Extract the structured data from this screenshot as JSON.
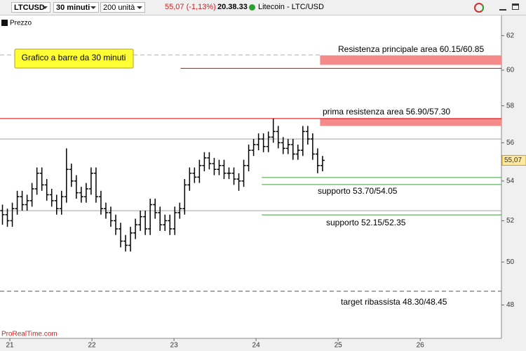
{
  "toolbar": {
    "symbol": "LTCUSD",
    "timeframe": "30 minuti",
    "units": "200 unità",
    "price_change": "55,07 (-1,13%)",
    "time": "20.38.33",
    "instrument": "Litecoin - LTC/USD"
  },
  "chart_data": {
    "type": "ohlc",
    "legend": "Prezzo",
    "note": "Grafico a barre da 30 minuti",
    "watermark": "ProRealTime.com",
    "color": "#000000",
    "log_scale": true,
    "xlim": [
      20.88,
      26.99
    ],
    "xticks": [
      21,
      22,
      23,
      24,
      25,
      26
    ],
    "ylim": [
      46.5,
      63.2
    ],
    "yticks": [
      48,
      50,
      52,
      54,
      56,
      58,
      60,
      62
    ],
    "last_price": {
      "value": 55.07,
      "label": "55,07"
    },
    "x": [
      20.91,
      20.97,
      21.03,
      21.09,
      21.15,
      21.21,
      21.27,
      21.33,
      21.39,
      21.45,
      21.51,
      21.57,
      21.63,
      21.69,
      21.75,
      21.81,
      21.87,
      21.93,
      21.99,
      22.05,
      22.11,
      22.17,
      22.23,
      22.29,
      22.35,
      22.41,
      22.47,
      22.53,
      22.59,
      22.65,
      22.71,
      22.77,
      22.83,
      22.89,
      22.95,
      23.01,
      23.07,
      23.13,
      23.19,
      23.25,
      23.31,
      23.37,
      23.43,
      23.49,
      23.55,
      23.61,
      23.67,
      23.73,
      23.79,
      23.85,
      23.91,
      23.97,
      24.03,
      24.09,
      24.15,
      24.21,
      24.27,
      24.33,
      24.39,
      24.45,
      24.51,
      24.57,
      24.63,
      24.69,
      24.75,
      24.81
    ],
    "open": [
      52.5,
      52.3,
      52.0,
      52.6,
      53.2,
      52.8,
      53.0,
      53.6,
      54.4,
      53.8,
      53.3,
      53.0,
      52.6,
      53.2,
      54.6,
      54.0,
      53.4,
      53.2,
      53.6,
      54.4,
      53.2,
      52.6,
      52.4,
      52.0,
      51.6,
      51.0,
      50.8,
      51.4,
      51.8,
      52.2,
      51.6,
      52.8,
      52.4,
      51.8,
      52.0,
      51.6,
      52.4,
      52.6,
      53.8,
      54.4,
      54.2,
      54.8,
      55.2,
      54.9,
      54.6,
      54.8,
      54.4,
      54.4,
      54.1,
      54.0,
      54.8,
      55.6,
      55.9,
      56.2,
      55.8,
      56.3,
      56.6,
      56.0,
      55.7,
      55.9,
      55.4,
      55.6,
      56.6,
      56.2,
      55.4,
      54.8
    ],
    "high": [
      52.8,
      52.6,
      52.9,
      53.5,
      53.5,
      53.3,
      53.9,
      54.7,
      54.7,
      54.1,
      53.6,
      53.3,
      53.5,
      55.7,
      54.9,
      54.3,
      53.7,
      53.9,
      54.7,
      54.7,
      53.5,
      52.9,
      52.7,
      52.3,
      51.9,
      51.3,
      51.7,
      52.1,
      52.5,
      52.5,
      53.1,
      53.1,
      52.7,
      52.3,
      52.3,
      52.7,
      52.9,
      54.1,
      54.7,
      54.7,
      55.1,
      55.5,
      55.5,
      55.2,
      55.1,
      55.1,
      54.7,
      54.7,
      54.4,
      55.1,
      55.9,
      56.2,
      56.5,
      56.5,
      56.6,
      57.3,
      56.9,
      56.3,
      56.2,
      56.2,
      55.9,
      56.9,
      56.9,
      56.5,
      55.7,
      55.3
    ],
    "low": [
      51.8,
      51.7,
      51.7,
      52.3,
      52.5,
      52.5,
      52.7,
      53.3,
      53.5,
      53.0,
      52.7,
      52.3,
      52.3,
      52.9,
      53.7,
      53.1,
      52.9,
      52.9,
      53.3,
      52.9,
      52.3,
      52.1,
      51.7,
      51.3,
      50.7,
      50.5,
      50.5,
      51.1,
      51.5,
      51.3,
      51.3,
      52.1,
      51.5,
      51.5,
      51.3,
      51.3,
      52.1,
      52.3,
      53.5,
      53.9,
      53.9,
      54.5,
      54.6,
      54.3,
      54.3,
      54.1,
      54.1,
      53.8,
      53.5,
      53.7,
      54.5,
      55.3,
      55.6,
      55.5,
      55.5,
      56.0,
      55.7,
      55.4,
      55.4,
      55.1,
      55.1,
      55.3,
      55.9,
      55.1,
      54.4,
      54.5
    ],
    "close": [
      52.3,
      52.0,
      52.6,
      53.2,
      52.8,
      53.0,
      53.6,
      54.4,
      53.8,
      53.3,
      53.0,
      52.6,
      53.2,
      54.6,
      54.0,
      53.4,
      53.2,
      53.6,
      54.4,
      53.2,
      52.6,
      52.4,
      52.0,
      51.6,
      51.0,
      50.8,
      51.4,
      51.8,
      52.2,
      51.6,
      52.8,
      52.4,
      51.8,
      52.0,
      51.6,
      52.4,
      52.6,
      53.8,
      54.4,
      54.2,
      54.8,
      55.2,
      54.9,
      54.6,
      54.8,
      54.4,
      54.4,
      54.1,
      54.0,
      54.8,
      55.6,
      55.9,
      56.2,
      55.8,
      56.3,
      56.6,
      56.0,
      55.7,
      55.9,
      55.4,
      55.6,
      56.6,
      56.2,
      55.4,
      54.8,
      55.07
    ],
    "hlines": [
      {
        "value": 60.87,
        "to": 24.78,
        "color": "#b0b0b0",
        "dashed": true
      },
      {
        "value": 60.1,
        "from": 23.08,
        "color": "#e00000",
        "dashed": false
      },
      {
        "value": 57.3,
        "color": "#e00000",
        "dashed": false
      },
      {
        "value": 56.2,
        "color": "#a0a0a0",
        "dashed": false
      },
      {
        "value": 54.18,
        "from": 24.07,
        "color": "#3aa03a",
        "dashed": false
      },
      {
        "value": 53.82,
        "from": 24.07,
        "color": "#3aa03a",
        "dashed": false
      },
      {
        "value": 52.5,
        "color": "#a0a0a0",
        "dashed": false
      },
      {
        "value": 52.29,
        "from": 24.07,
        "color": "#3aa03a",
        "dashed": false
      },
      {
        "value": 48.63,
        "color": "#505050",
        "dashed": true
      }
    ],
    "zones": [
      {
        "low": 60.3,
        "high": 60.85,
        "from": 24.78,
        "color": "#f48a8a"
      },
      {
        "low": 56.9,
        "high": 57.3,
        "from": 24.78,
        "color": "#f48a8a"
      }
    ],
    "annotations": [
      "Resistenza principale area 60.15/60.85",
      "prima resistenza area 56.90/57.30",
      "supporto 53.70/54.05",
      "supporto 52.15/52.35",
      "target ribassista 48.30/48.45"
    ]
  }
}
